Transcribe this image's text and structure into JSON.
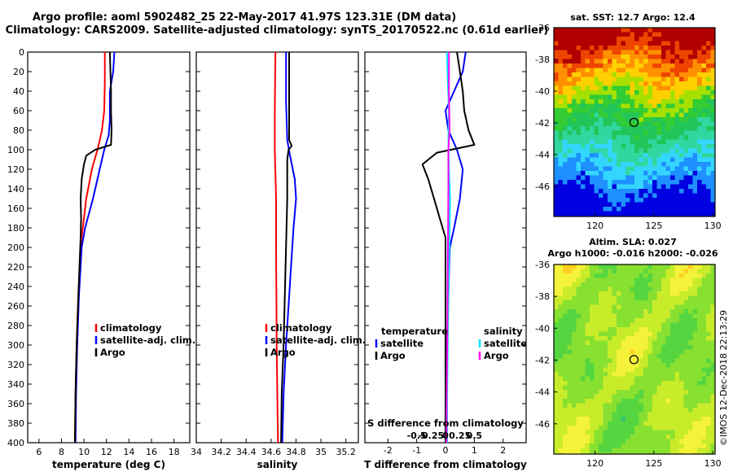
{
  "title": {
    "line1": "Argo profile: aoml 5902482_25 22-May-2017 41.97S 123.31E (DM data)",
    "line2": "Climatology: CARS2009. Satellite-adjusted climatology: synTS_20170522.nc (0.61d earlier)"
  },
  "colors": {
    "climatology": "#ff0000",
    "satellite": "#0000ff",
    "argo": "#000000",
    "satellite_s": "#00e5ff",
    "argo_s": "#ff00ff"
  },
  "depth_ticks": [
    0,
    20,
    40,
    60,
    80,
    100,
    120,
    140,
    160,
    180,
    200,
    220,
    240,
    260,
    280,
    300,
    320,
    340,
    360,
    380,
    400
  ],
  "chart_data": [
    {
      "type": "line",
      "id": "temperature",
      "xlabel": "temperature (deg C)",
      "ylabel": "depth",
      "xlim": [
        5,
        19.4
      ],
      "ylim": [
        400,
        0
      ],
      "xticks": [
        6,
        8,
        10,
        12,
        14,
        16,
        18
      ],
      "xtick_labels": [
        "6",
        "8",
        "10",
        "12",
        "14",
        "16",
        "18"
      ],
      "legend": [
        "climatology",
        "satellite-adj. clim.",
        "Argo"
      ],
      "series": [
        {
          "name": "climatology",
          "color": "#ff0000",
          "points": [
            [
              11.85,
              0
            ],
            [
              11.85,
              30
            ],
            [
              11.8,
              60
            ],
            [
              11.6,
              80
            ],
            [
              11.2,
              100
            ],
            [
              10.7,
              120
            ],
            [
              10.2,
              150
            ],
            [
              9.9,
              180
            ],
            [
              9.7,
              200
            ],
            [
              9.5,
              250
            ],
            [
              9.35,
              300
            ],
            [
              9.25,
              350
            ],
            [
              9.2,
              400
            ]
          ]
        },
        {
          "name": "satellite-adj. clim.",
          "color": "#0000ff",
          "points": [
            [
              12.7,
              0
            ],
            [
              12.6,
              20
            ],
            [
              12.3,
              40
            ],
            [
              12.3,
              70
            ],
            [
              12.2,
              85
            ],
            [
              11.8,
              100
            ],
            [
              11.4,
              120
            ],
            [
              10.8,
              150
            ],
            [
              10.1,
              180
            ],
            [
              9.8,
              200
            ],
            [
              9.55,
              250
            ],
            [
              9.4,
              300
            ],
            [
              9.3,
              350
            ],
            [
              9.25,
              400
            ]
          ]
        },
        {
          "name": "Argo",
          "color": "#000000",
          "points": [
            [
              12.3,
              0
            ],
            [
              12.35,
              20
            ],
            [
              12.4,
              40
            ],
            [
              12.4,
              60
            ],
            [
              12.45,
              80
            ],
            [
              12.4,
              95
            ],
            [
              11.0,
              100
            ],
            [
              10.2,
              106
            ],
            [
              10.0,
              115
            ],
            [
              9.8,
              130
            ],
            [
              9.7,
              150
            ],
            [
              9.75,
              170
            ],
            [
              9.7,
              190
            ],
            [
              9.5,
              250
            ],
            [
              9.35,
              300
            ],
            [
              9.25,
              350
            ],
            [
              9.2,
              400
            ]
          ]
        }
      ]
    },
    {
      "type": "line",
      "id": "salinity",
      "xlabel": "salinity",
      "ylabel": "depth",
      "xlim": [
        34,
        35.3
      ],
      "ylim": [
        400,
        0
      ],
      "xticks": [
        34,
        34.2,
        34.4,
        34.6,
        34.8,
        35,
        35.2
      ],
      "xtick_labels": [
        "34",
        "34.2",
        "34.4",
        "34.6",
        "34.8",
        "35",
        "35.2"
      ],
      "legend": [
        "climatology",
        "satellite-adj. clim.",
        "Argo"
      ],
      "series": [
        {
          "name": "climatology",
          "color": "#ff0000",
          "points": [
            [
              34.635,
              0
            ],
            [
              34.63,
              60
            ],
            [
              34.63,
              100
            ],
            [
              34.64,
              150
            ],
            [
              34.64,
              200
            ],
            [
              34.645,
              300
            ],
            [
              34.655,
              400
            ]
          ]
        },
        {
          "name": "satellite-adj. clim.",
          "color": "#0000ff",
          "points": [
            [
              34.72,
              0
            ],
            [
              34.72,
              50
            ],
            [
              34.73,
              90
            ],
            [
              34.75,
              105
            ],
            [
              34.79,
              130
            ],
            [
              34.8,
              150
            ],
            [
              34.78,
              180
            ],
            [
              34.76,
              220
            ],
            [
              34.74,
              260
            ],
            [
              34.72,
              300
            ],
            [
              34.7,
              350
            ],
            [
              34.69,
              400
            ]
          ]
        },
        {
          "name": "Argo",
          "color": "#000000",
          "points": [
            [
              34.745,
              0
            ],
            [
              34.745,
              90
            ],
            [
              34.765,
              96
            ],
            [
              34.74,
              100
            ],
            [
              34.73,
              110
            ],
            [
              34.73,
              150
            ],
            [
              34.72,
              200
            ],
            [
              34.71,
              250
            ],
            [
              34.7,
              300
            ],
            [
              34.685,
              350
            ],
            [
              34.68,
              400
            ]
          ]
        }
      ]
    },
    {
      "type": "line",
      "id": "difference",
      "xlabel": "T difference from climatology",
      "ylabel": "depth",
      "xlim": [
        -2.8,
        2.8
      ],
      "ylim": [
        400,
        0
      ],
      "xticks": [
        -2,
        -1,
        0,
        1,
        2
      ],
      "xtick_labels": [
        "-2",
        "-1",
        "0",
        "1",
        "2"
      ],
      "s_axis_label": "S difference from climatology",
      "s_ticks": [
        -0.5,
        -0.25,
        0,
        0.25,
        0.5
      ],
      "s_tick_labels": [
        "-0.5",
        "-0.25",
        "0",
        "0.25",
        "0.5"
      ],
      "legend_t_title": "temperature",
      "legend_s_title": "salinity",
      "legend_t": [
        "satellite",
        "Argo"
      ],
      "legend_s": [
        "satellite",
        "Argo"
      ],
      "series": [
        {
          "name": "T satellite",
          "color": "#0000ff",
          "points": [
            [
              0.7,
              0
            ],
            [
              0.6,
              20
            ],
            [
              0.3,
              40
            ],
            [
              0.0,
              60
            ],
            [
              0.1,
              80
            ],
            [
              0.4,
              100
            ],
            [
              0.6,
              120
            ],
            [
              0.5,
              150
            ],
            [
              0.3,
              180
            ],
            [
              0.15,
              200
            ],
            [
              0.1,
              250
            ],
            [
              0.05,
              300
            ],
            [
              0.05,
              400
            ]
          ]
        },
        {
          "name": "T Argo",
          "color": "#000000",
          "points": [
            [
              0.4,
              0
            ],
            [
              0.5,
              20
            ],
            [
              0.6,
              40
            ],
            [
              0.65,
              60
            ],
            [
              0.8,
              80
            ],
            [
              1.0,
              95
            ],
            [
              -0.3,
              103
            ],
            [
              -0.8,
              115
            ],
            [
              -0.6,
              130
            ],
            [
              -0.4,
              150
            ],
            [
              -0.2,
              170
            ],
            [
              0.0,
              190
            ],
            [
              0.0,
              250
            ],
            [
              0.0,
              300
            ],
            [
              0.0,
              400
            ]
          ]
        },
        {
          "name": "S satellite",
          "color": "#00e5ff",
          "points": [
            [
              0.05,
              0
            ],
            [
              0.08,
              30
            ],
            [
              0.12,
              60
            ],
            [
              0.1,
              90
            ],
            [
              0.12,
              120
            ],
            [
              0.16,
              150
            ],
            [
              0.14,
              180
            ],
            [
              0.12,
              220
            ],
            [
              0.1,
              260
            ],
            [
              0.08,
              300
            ],
            [
              0.06,
              350
            ],
            [
              0.05,
              400
            ]
          ]
        },
        {
          "name": "S Argo",
          "color": "#ff00ff",
          "points": [
            [
              0.12,
              0
            ],
            [
              0.12,
              40
            ],
            [
              0.14,
              80
            ],
            [
              0.1,
              100
            ],
            [
              0.1,
              140
            ],
            [
              0.09,
              180
            ],
            [
              0.08,
              220
            ],
            [
              0.07,
              260
            ],
            [
              0.06,
              300
            ],
            [
              0.04,
              350
            ],
            [
              0.03,
              400
            ]
          ]
        }
      ]
    },
    {
      "type": "heatmap",
      "id": "sst_map",
      "title": "sat. SST: 12.7 Argo: 12.4",
      "xlim": [
        116.5,
        130.2
      ],
      "ylim": [
        -47.9,
        -36
      ],
      "xticks": [
        120,
        125,
        130
      ],
      "xtick_labels": [
        "120",
        "125",
        "130"
      ],
      "yticks": [
        -36,
        -38,
        -40,
        -42,
        -44,
        -46
      ],
      "ytick_labels": [
        "-36",
        "-38",
        "-40",
        "-42",
        "-44",
        "-46"
      ],
      "marker": [
        123.31,
        -41.97
      ]
    },
    {
      "type": "heatmap",
      "id": "sla_map",
      "title_line1": "Altim. SLA: 0.027",
      "title_line2": "Argo h1000: -0.016 h2000: -0.026",
      "xlim": [
        116.5,
        130.2
      ],
      "ylim": [
        -47.9,
        -36
      ],
      "xticks": [
        120,
        125,
        130
      ],
      "xtick_labels": [
        "120",
        "125",
        "130"
      ],
      "yticks": [
        -36,
        -38,
        -40,
        -42,
        -44,
        -46
      ],
      "ytick_labels": [
        "-36",
        "-38",
        "-40",
        "-42",
        "-44",
        "-46"
      ],
      "marker": [
        123.31,
        -41.97
      ]
    }
  ],
  "credit": "©IMOS 12-Dec-2018 22:13:29"
}
